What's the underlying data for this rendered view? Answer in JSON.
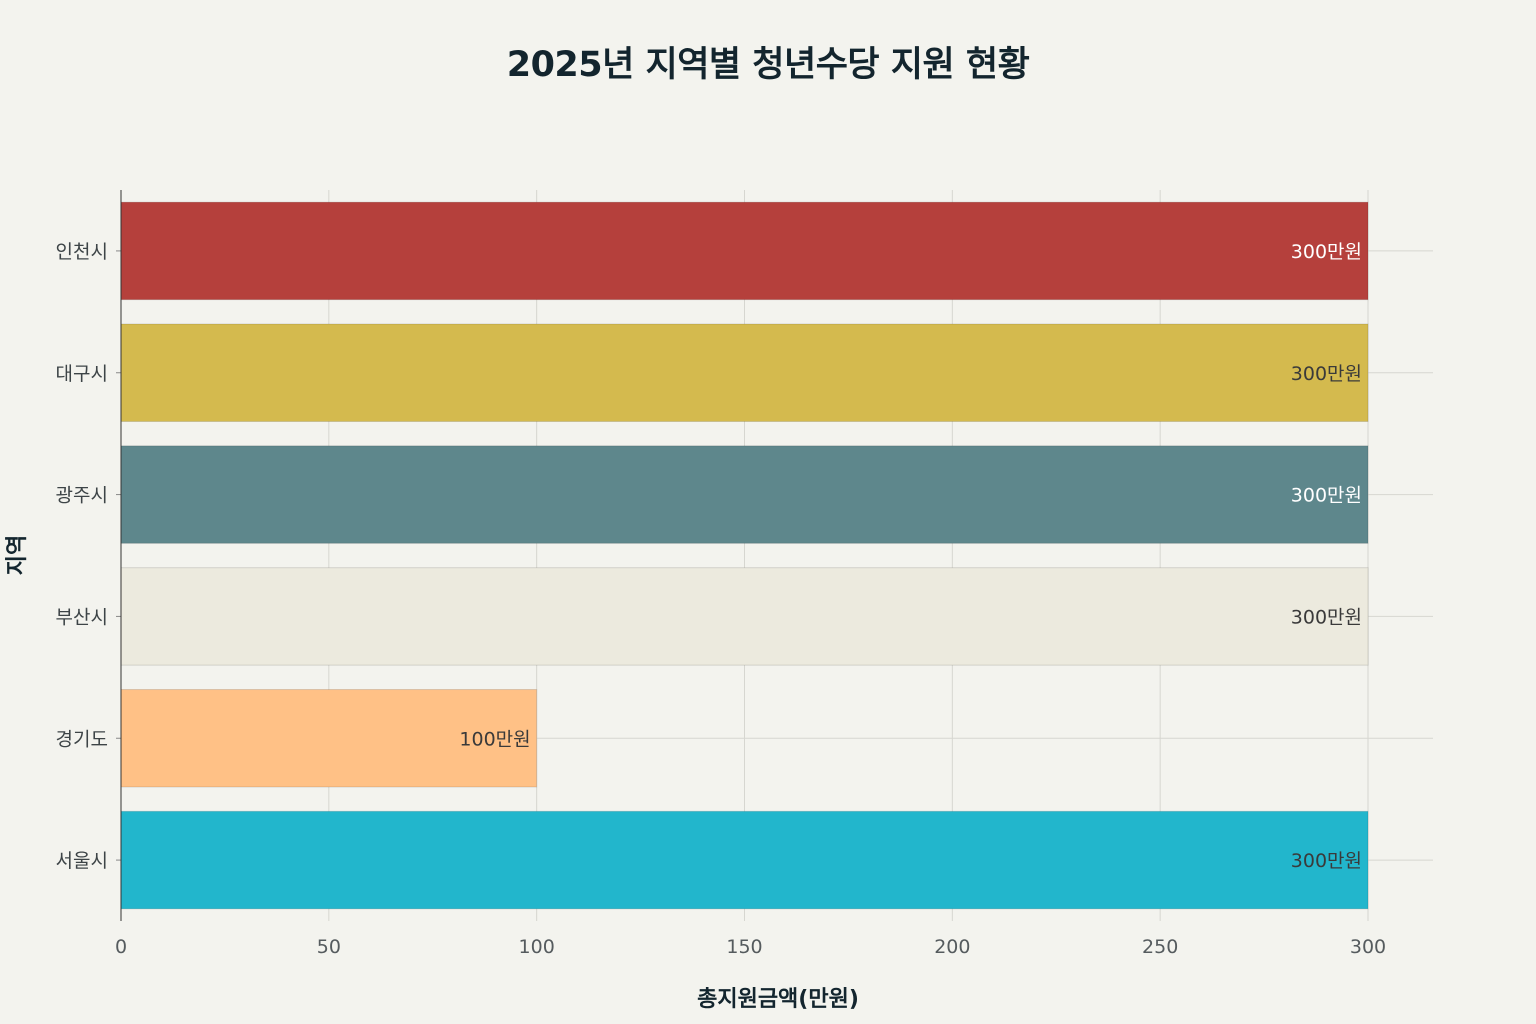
{
  "chart_data": {
    "type": "bar",
    "orientation": "horizontal",
    "title": "2025년 지역별 청년수당 지원 현황",
    "xlabel": "총지원금액(만원)",
    "ylabel": "지역",
    "xlim": [
      0,
      300
    ],
    "x_ticks": [
      0,
      50,
      100,
      150,
      200,
      250,
      300
    ],
    "categories": [
      "인천시",
      "대구시",
      "광주시",
      "부산시",
      "경기도",
      "서울시"
    ],
    "values": [
      300,
      300,
      300,
      300,
      100,
      300
    ],
    "data_labels": [
      "300만원",
      "300만원",
      "300만원",
      "300만원",
      "100만원",
      "300만원"
    ],
    "colors": [
      "#b5403c",
      "#d4ba4e",
      "#5e878c",
      "#eceade",
      "#ffc186",
      "#22b6cc"
    ],
    "label_colors": [
      "#ffffff",
      "#3a3a3a",
      "#ffffff",
      "#3a3a3a",
      "#3a3a3a",
      "#3a3a3a"
    ],
    "grid": true,
    "legend": "none"
  }
}
